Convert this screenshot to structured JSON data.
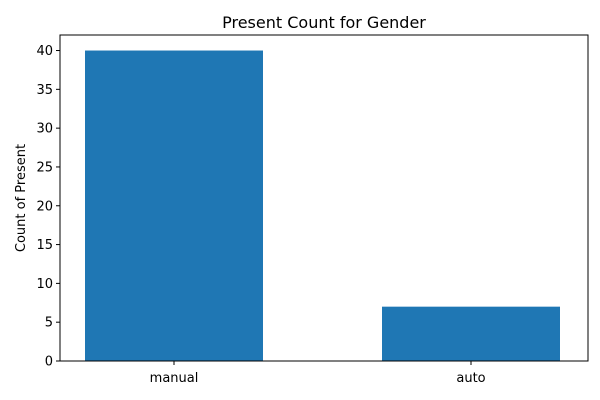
{
  "chart_data": {
    "type": "bar",
    "title": "Present Count for Gender",
    "xlabel": "",
    "ylabel": "Count of Present",
    "categories": [
      "manual",
      "auto"
    ],
    "values": [
      40,
      7
    ],
    "ylim": [
      0,
      42
    ],
    "yticks": [
      0,
      5,
      10,
      15,
      20,
      25,
      30,
      35,
      40
    ],
    "grid": false,
    "legend": "none",
    "bar_color": "#1f77b4"
  }
}
